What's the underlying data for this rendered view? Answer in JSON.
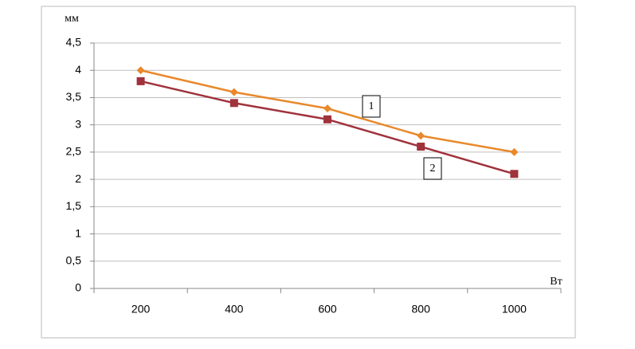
{
  "chart_data": {
    "type": "line",
    "y_label": "мм",
    "x_label": "Вт",
    "categories": [
      "200",
      "400",
      "600",
      "800",
      "1000"
    ],
    "series": [
      {
        "name": "1",
        "color": "#e8892b",
        "marker": "diamond",
        "values": [
          4,
          3.6,
          3.3,
          2.8,
          2.5
        ]
      },
      {
        "name": "2",
        "color": "#a0323c",
        "marker": "square",
        "values": [
          3.8,
          3.4,
          3.1,
          2.6,
          2.1
        ]
      }
    ],
    "ylim": [
      0,
      4.5
    ],
    "yticks": [
      0,
      {
        "value": 0.5,
        "label": "0,5"
      },
      1,
      {
        "value": 1.5,
        "label": "1,5"
      },
      2,
      {
        "value": 2.5,
        "label": "2,5"
      },
      3,
      {
        "value": 3.5,
        "label": "3,5"
      },
      4,
      {
        "value": 4.5,
        "label": "4,5"
      }
    ],
    "grid": true
  }
}
